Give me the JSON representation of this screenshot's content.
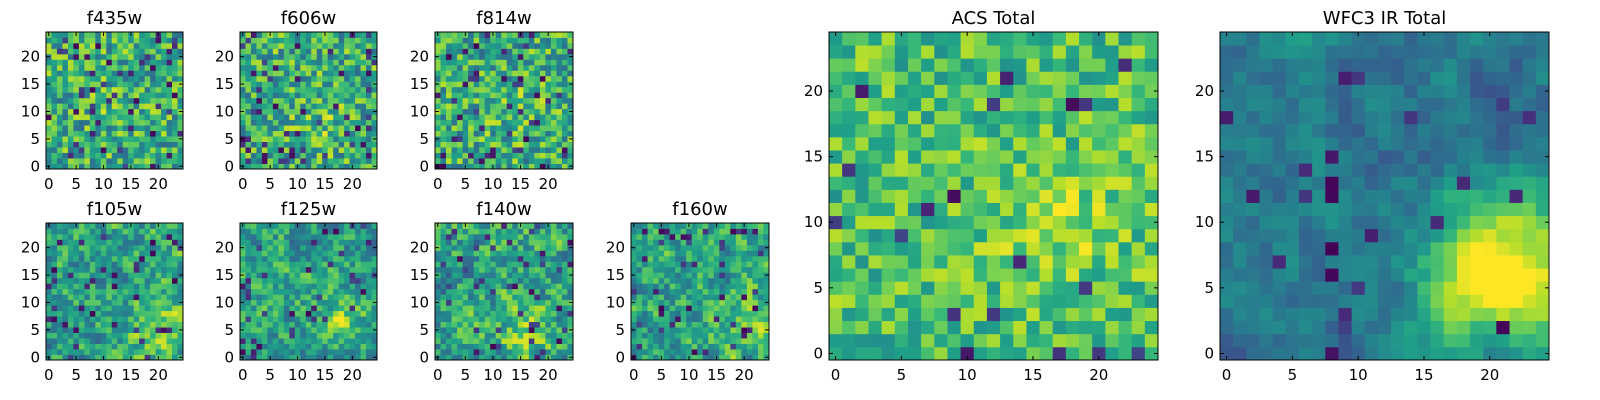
{
  "figure": {
    "colormap": [
      "#440154",
      "#482878",
      "#3e4989",
      "#31688e",
      "#26828e",
      "#1f9e89",
      "#35b779",
      "#6ece58",
      "#b5de2b",
      "#fde725"
    ]
  },
  "chart_data": [
    {
      "type": "heatmap",
      "title": "f435w",
      "image_size": [
        25,
        25
      ],
      "xlim": [
        -0.5,
        24.5
      ],
      "ylim": [
        -0.5,
        24.5
      ],
      "xticks": [
        0,
        5,
        10,
        15,
        20
      ],
      "yticks": [
        0,
        5,
        10,
        15,
        20
      ],
      "bias_center": [
        12,
        12
      ],
      "bias_strength": 0.05,
      "dip_fraction": 0.08,
      "seed": 11,
      "tone": "speckle"
    },
    {
      "type": "heatmap",
      "title": "f606w",
      "image_size": [
        25,
        25
      ],
      "xlim": [
        -0.5,
        24.5
      ],
      "ylim": [
        -0.5,
        24.5
      ],
      "xticks": [
        0,
        5,
        10,
        15,
        20
      ],
      "yticks": [
        0,
        5,
        10,
        15,
        20
      ],
      "bias_center": [
        14,
        8
      ],
      "bias_strength": 0.08,
      "dip_fraction": 0.09,
      "seed": 23,
      "tone": "speckle"
    },
    {
      "type": "heatmap",
      "title": "f814w",
      "image_size": [
        25,
        25
      ],
      "xlim": [
        -0.5,
        24.5
      ],
      "ylim": [
        -0.5,
        24.5
      ],
      "xticks": [
        0,
        5,
        10,
        15,
        20
      ],
      "yticks": [
        0,
        5,
        10,
        15,
        20
      ],
      "bias_center": [
        15,
        10
      ],
      "bias_strength": 0.08,
      "dip_fraction": 0.08,
      "seed": 37,
      "tone": "speckle"
    },
    {
      "type": "heatmap",
      "title": "f105w",
      "image_size": [
        25,
        25
      ],
      "xlim": [
        -0.5,
        24.5
      ],
      "ylim": [
        -0.5,
        24.5
      ],
      "xticks": [
        0,
        5,
        10,
        15,
        20
      ],
      "yticks": [
        0,
        5,
        10,
        15,
        20
      ],
      "bias_center": [
        20,
        6
      ],
      "bias_strength": 0.25,
      "dip_fraction": 0.06,
      "seed": 41,
      "tone": "smooth"
    },
    {
      "type": "heatmap",
      "title": "f125w",
      "image_size": [
        25,
        25
      ],
      "xlim": [
        -0.5,
        24.5
      ],
      "ylim": [
        -0.5,
        24.5
      ],
      "xticks": [
        0,
        5,
        10,
        15,
        20
      ],
      "yticks": [
        0,
        5,
        10,
        15,
        20
      ],
      "bias_center": [
        19,
        8
      ],
      "bias_strength": 0.18,
      "dip_fraction": 0.06,
      "seed": 53,
      "tone": "smooth"
    },
    {
      "type": "heatmap",
      "title": "f140w",
      "image_size": [
        25,
        25
      ],
      "xlim": [
        -0.5,
        24.5
      ],
      "ylim": [
        -0.5,
        24.5
      ],
      "xticks": [
        0,
        5,
        10,
        15,
        20
      ],
      "yticks": [
        0,
        5,
        10,
        15,
        20
      ],
      "bias_center": [
        16,
        4
      ],
      "bias_strength": 0.18,
      "dip_fraction": 0.07,
      "seed": 67,
      "tone": "smooth"
    },
    {
      "type": "heatmap",
      "title": "f160w",
      "image_size": [
        25,
        25
      ],
      "xlim": [
        -0.5,
        24.5
      ],
      "ylim": [
        -0.5,
        24.5
      ],
      "xticks": [
        0,
        5,
        10,
        15,
        20
      ],
      "yticks": [
        0,
        5,
        10,
        15,
        20
      ],
      "bias_center": [
        20,
        6
      ],
      "bias_strength": 0.18,
      "dip_fraction": 0.07,
      "seed": 79,
      "tone": "smooth"
    },
    {
      "type": "heatmap",
      "title": "ACS Total",
      "image_size": [
        25,
        25
      ],
      "xlim": [
        -0.5,
        24.5
      ],
      "ylim": [
        -0.5,
        24.5
      ],
      "xticks": [
        0,
        5,
        10,
        15,
        20
      ],
      "yticks": [
        0,
        5,
        10,
        15,
        20
      ],
      "bias_center": [
        17,
        10
      ],
      "bias_strength": 0.12,
      "dip_fraction": 0.03,
      "seed": 97,
      "tone": "bright"
    },
    {
      "type": "heatmap",
      "title": "WFC3 IR Total",
      "image_size": [
        25,
        25
      ],
      "xlim": [
        -0.5,
        24.5
      ],
      "ylim": [
        -0.5,
        24.5
      ],
      "xticks": [
        0,
        5,
        10,
        15,
        20
      ],
      "yticks": [
        0,
        5,
        10,
        15,
        20
      ],
      "bias_center": [
        21,
        6
      ],
      "bias_strength": 0.75,
      "dip_fraction": 0.04,
      "seed": 131,
      "tone": "dark"
    }
  ]
}
